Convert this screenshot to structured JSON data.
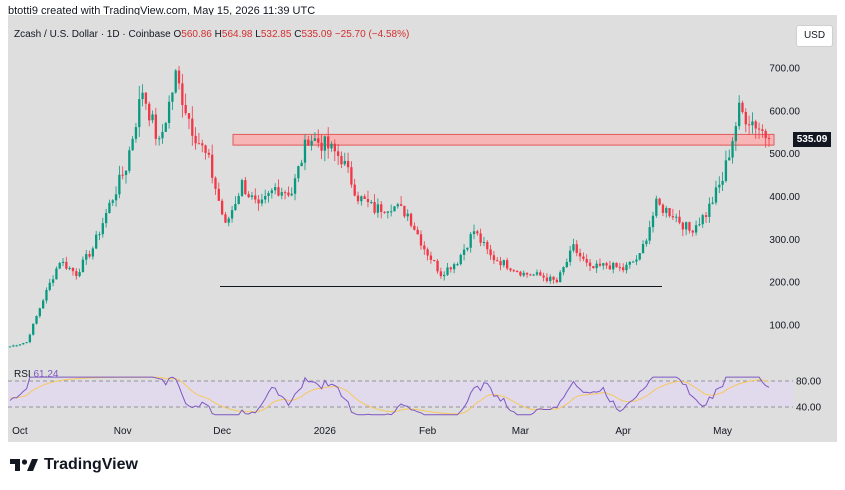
{
  "header": {
    "text": "btotti9 created with TradingView.com, May 15, 2026 11:39 UTC"
  },
  "legend": {
    "symbol": "Zcash / U.S. Dollar · 1D · Coinbase",
    "open_label": "O",
    "open": "560.86",
    "high_label": "H",
    "high": "564.98",
    "low_label": "L",
    "low": "532.85",
    "close_label": "C",
    "close": "535.09",
    "change": "−25.70 (−4.58%)"
  },
  "currency_button": "USD",
  "last_price_tag": "535.09",
  "rsi": {
    "label": "RSI",
    "value": "61.24"
  },
  "footer": {
    "brand": "TradingView"
  },
  "colors": {
    "up": "#089981",
    "down": "#f23645",
    "resistance_zone": "#f7b5b5",
    "resistance_edge": "#e05a5a",
    "rsi_line": "#7e57c2",
    "rsi_signal": "#f6c85f"
  },
  "chart_data": {
    "type": "candlestick",
    "x_tick_labels": [
      "Oct",
      "Nov",
      "Dec",
      "2026",
      "Feb",
      "Mar",
      "Apr",
      "May"
    ],
    "y_tick_labels": [
      "100.00",
      "200.00",
      "300.00",
      "400.00",
      "500.00",
      "600.00",
      "700.00"
    ],
    "ylim": [
      0,
      780
    ],
    "close_path_approx": [
      {
        "x": "2025-09-28",
        "y": 50
      },
      {
        "x": "2025-10-03",
        "y": 60
      },
      {
        "x": "2025-10-08",
        "y": 160
      },
      {
        "x": "2025-10-13",
        "y": 250
      },
      {
        "x": "2025-10-18",
        "y": 220
      },
      {
        "x": "2025-10-23",
        "y": 280
      },
      {
        "x": "2025-10-28",
        "y": 380
      },
      {
        "x": "2025-11-02",
        "y": 470
      },
      {
        "x": "2025-11-07",
        "y": 650
      },
      {
        "x": "2025-11-12",
        "y": 520
      },
      {
        "x": "2025-11-17",
        "y": 680
      },
      {
        "x": "2025-11-22",
        "y": 560
      },
      {
        "x": "2025-11-27",
        "y": 480
      },
      {
        "x": "2025-12-02",
        "y": 330
      },
      {
        "x": "2025-12-07",
        "y": 430
      },
      {
        "x": "2025-12-12",
        "y": 370
      },
      {
        "x": "2025-12-17",
        "y": 420
      },
      {
        "x": "2025-12-22",
        "y": 410
      },
      {
        "x": "2025-12-27",
        "y": 540
      },
      {
        "x": "2026-01-01",
        "y": 520
      },
      {
        "x": "2026-01-06",
        "y": 490
      },
      {
        "x": "2026-01-11",
        "y": 400
      },
      {
        "x": "2026-01-16",
        "y": 370
      },
      {
        "x": "2026-01-21",
        "y": 380
      },
      {
        "x": "2026-01-26",
        "y": 360
      },
      {
        "x": "2026-01-31",
        "y": 280
      },
      {
        "x": "2026-02-05",
        "y": 220
      },
      {
        "x": "2026-02-10",
        "y": 250
      },
      {
        "x": "2026-02-15",
        "y": 320
      },
      {
        "x": "2026-02-20",
        "y": 260
      },
      {
        "x": "2026-02-25",
        "y": 240
      },
      {
        "x": "2026-03-02",
        "y": 220
      },
      {
        "x": "2026-03-07",
        "y": 215
      },
      {
        "x": "2026-03-12",
        "y": 200
      },
      {
        "x": "2026-03-17",
        "y": 280
      },
      {
        "x": "2026-03-22",
        "y": 230
      },
      {
        "x": "2026-03-27",
        "y": 240
      },
      {
        "x": "2026-04-01",
        "y": 230
      },
      {
        "x": "2026-04-06",
        "y": 260
      },
      {
        "x": "2026-04-11",
        "y": 380
      },
      {
        "x": "2026-04-16",
        "y": 360
      },
      {
        "x": "2026-04-21",
        "y": 320
      },
      {
        "x": "2026-04-26",
        "y": 360
      },
      {
        "x": "2026-05-01",
        "y": 440
      },
      {
        "x": "2026-05-06",
        "y": 600
      },
      {
        "x": "2026-05-11",
        "y": 570
      },
      {
        "x": "2026-05-15",
        "y": 535.09
      }
    ],
    "resistance_zone": [
      520,
      545
    ],
    "support_line": 190,
    "rsi_levels": [
      40,
      80
    ],
    "rsi_last": 61.24,
    "grid": false
  }
}
